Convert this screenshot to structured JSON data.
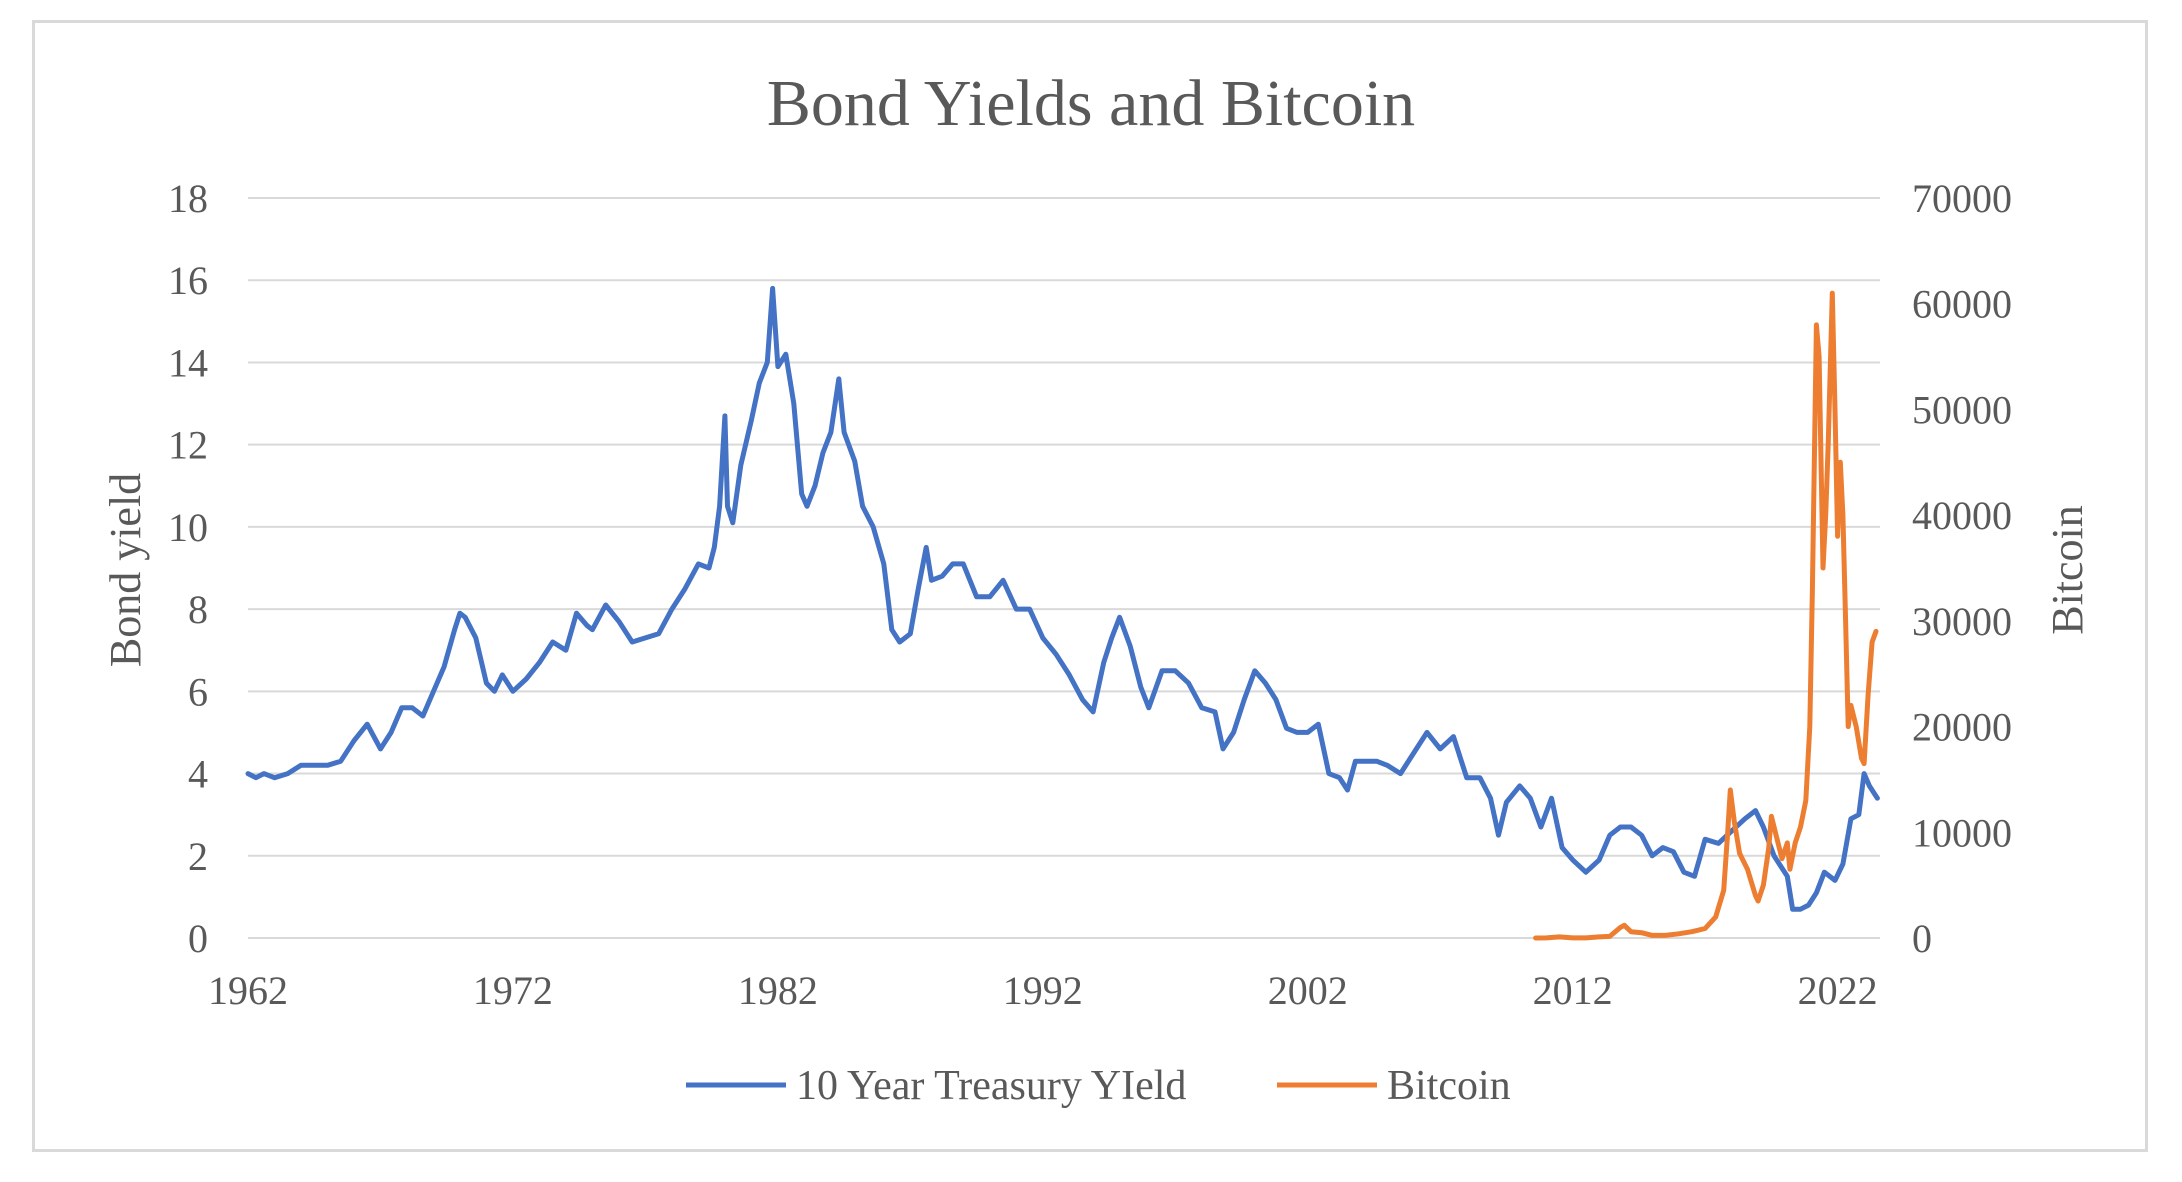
{
  "chart_data": {
    "type": "line",
    "title": "Bond Yields and Bitcoin",
    "xlabel": "",
    "ylabel": "Bond yield",
    "y2label": "Bitcoin",
    "xlim": [
      1962,
      2023.6
    ],
    "ylim": [
      0,
      18
    ],
    "y2lim": [
      0,
      70000
    ],
    "x_ticks": [
      "1962",
      "1972",
      "1982",
      "1992",
      "2002",
      "2012",
      "2022"
    ],
    "y_ticks": [
      "0",
      "2",
      "4",
      "6",
      "8",
      "10",
      "12",
      "14",
      "16",
      "18"
    ],
    "y2_ticks": [
      "0",
      "10000",
      "20000",
      "30000",
      "40000",
      "50000",
      "60000",
      "70000"
    ],
    "grid": "horizontal",
    "legend_position": "bottom",
    "series": [
      {
        "name": "10 Year Treasury YIeld",
        "color": "#4472c4",
        "axis": "left",
        "x": [
          1962.0,
          1962.3,
          1962.6,
          1963.0,
          1963.5,
          1964.0,
          1964.5,
          1965.0,
          1965.5,
          1966.0,
          1966.5,
          1967.0,
          1967.4,
          1967.8,
          1968.2,
          1968.6,
          1969.0,
          1969.4,
          1969.8,
          1970.0,
          1970.2,
          1970.6,
          1971.0,
          1971.3,
          1971.6,
          1972.0,
          1972.5,
          1973.0,
          1973.5,
          1974.0,
          1974.4,
          1974.8,
          1975.0,
          1975.5,
          1976.0,
          1976.5,
          1977.0,
          1977.5,
          1978.0,
          1978.5,
          1979.0,
          1979.4,
          1979.6,
          1979.8,
          1980.0,
          1980.1,
          1980.3,
          1980.6,
          1981.0,
          1981.3,
          1981.6,
          1981.8,
          1982.0,
          1982.3,
          1982.6,
          1982.9,
          1983.1,
          1983.4,
          1983.7,
          1984.0,
          1984.3,
          1984.5,
          1984.9,
          1985.2,
          1985.6,
          1986.0,
          1986.3,
          1986.6,
          1987.0,
          1987.3,
          1987.6,
          1987.8,
          1988.2,
          1988.6,
          1989.0,
          1989.5,
          1990.0,
          1990.5,
          1991.0,
          1991.5,
          1992.0,
          1992.5,
          1993.0,
          1993.5,
          1993.9,
          1994.3,
          1994.6,
          1994.9,
          1995.3,
          1995.7,
          1996.0,
          1996.5,
          1997.0,
          1997.5,
          1998.0,
          1998.5,
          1998.8,
          1999.2,
          1999.6,
          2000.0,
          2000.4,
          2000.8,
          2001.2,
          2001.6,
          2002.0,
          2002.4,
          2002.8,
          2003.2,
          2003.5,
          2003.8,
          2004.2,
          2004.6,
          2005.0,
          2005.5,
          2006.0,
          2006.5,
          2007.0,
          2007.5,
          2008.0,
          2008.5,
          2008.9,
          2009.2,
          2009.5,
          2010.0,
          2010.4,
          2010.8,
          2011.2,
          2011.6,
          2012.0,
          2012.5,
          2013.0,
          2013.4,
          2013.8,
          2014.2,
          2014.6,
          2015.0,
          2015.4,
          2015.8,
          2016.2,
          2016.6,
          2017.0,
          2017.5,
          2018.0,
          2018.5,
          2018.9,
          2019.2,
          2019.6,
          2019.9,
          2020.1,
          2020.3,
          2020.6,
          2020.9,
          2021.2,
          2021.5,
          2021.9,
          2022.2,
          2022.5,
          2022.8,
          2023.0,
          2023.2,
          2023.4,
          2023.5
        ],
        "values": [
          4.0,
          3.9,
          4.0,
          3.9,
          4.0,
          4.2,
          4.2,
          4.2,
          4.3,
          4.8,
          5.2,
          4.6,
          5.0,
          5.6,
          5.6,
          5.4,
          6.0,
          6.6,
          7.5,
          7.9,
          7.8,
          7.3,
          6.2,
          6.0,
          6.4,
          6.0,
          6.3,
          6.7,
          7.2,
          7.0,
          7.9,
          7.6,
          7.5,
          8.1,
          7.7,
          7.2,
          7.3,
          7.4,
          8.0,
          8.5,
          9.1,
          9.0,
          9.5,
          10.5,
          12.7,
          10.5,
          10.1,
          11.5,
          12.6,
          13.5,
          14.0,
          15.8,
          13.9,
          14.2,
          13.0,
          10.8,
          10.5,
          11.0,
          11.8,
          12.3,
          13.6,
          12.3,
          11.6,
          10.5,
          10.0,
          9.1,
          7.5,
          7.2,
          7.4,
          8.5,
          9.5,
          8.7,
          8.8,
          9.1,
          9.1,
          8.3,
          8.3,
          8.7,
          8.0,
          8.0,
          7.3,
          6.9,
          6.4,
          5.8,
          5.5,
          6.7,
          7.3,
          7.8,
          7.1,
          6.1,
          5.6,
          6.5,
          6.5,
          6.2,
          5.6,
          5.5,
          4.6,
          5.0,
          5.8,
          6.5,
          6.2,
          5.8,
          5.1,
          5.0,
          5.0,
          5.2,
          4.0,
          3.9,
          3.6,
          4.3,
          4.3,
          4.3,
          4.2,
          4.0,
          4.5,
          5.0,
          4.6,
          4.9,
          3.9,
          3.9,
          3.4,
          2.5,
          3.3,
          3.7,
          3.4,
          2.7,
          3.4,
          2.2,
          1.9,
          1.6,
          1.9,
          2.5,
          2.7,
          2.7,
          2.5,
          2.0,
          2.2,
          2.1,
          1.6,
          1.5,
          2.4,
          2.3,
          2.6,
          2.9,
          3.1,
          2.7,
          2.0,
          1.7,
          1.5,
          0.7,
          0.7,
          0.8,
          1.1,
          1.6,
          1.4,
          1.8,
          2.9,
          3.0,
          4.0,
          3.7,
          3.5,
          3.4
        ]
      },
      {
        "name": "Bitcoin",
        "color": "#ed7d31",
        "axis": "right",
        "x": [
          2010.6,
          2011.0,
          2011.5,
          2012.0,
          2012.5,
          2013.0,
          2013.4,
          2013.8,
          2013.95,
          2014.2,
          2014.6,
          2015.0,
          2015.5,
          2016.0,
          2016.5,
          2017.0,
          2017.4,
          2017.7,
          2017.85,
          2017.95,
          2018.1,
          2018.3,
          2018.6,
          2018.9,
          2019.0,
          2019.2,
          2019.4,
          2019.5,
          2019.7,
          2019.9,
          2020.1,
          2020.2,
          2020.4,
          2020.6,
          2020.8,
          2020.95,
          2021.05,
          2021.2,
          2021.3,
          2021.45,
          2021.55,
          2021.65,
          2021.8,
          2021.9,
          2022.0,
          2022.1,
          2022.2,
          2022.3,
          2022.4,
          2022.5,
          2022.7,
          2022.9,
          2023.0,
          2023.15,
          2023.3,
          2023.45
        ],
        "values": [
          0,
          10,
          100,
          10,
          10,
          100,
          150,
          1000,
          1200,
          600,
          500,
          250,
          250,
          400,
          600,
          900,
          2000,
          4500,
          10000,
          14000,
          11000,
          8000,
          6500,
          4000,
          3500,
          5000,
          8500,
          11500,
          9500,
          7500,
          9000,
          6500,
          9000,
          10500,
          13000,
          20000,
          33000,
          58000,
          55000,
          35000,
          40000,
          47000,
          61000,
          50000,
          38000,
          45000,
          40000,
          30000,
          20000,
          22000,
          20000,
          17000,
          16500,
          23000,
          28000,
          29000
        ]
      }
    ]
  }
}
